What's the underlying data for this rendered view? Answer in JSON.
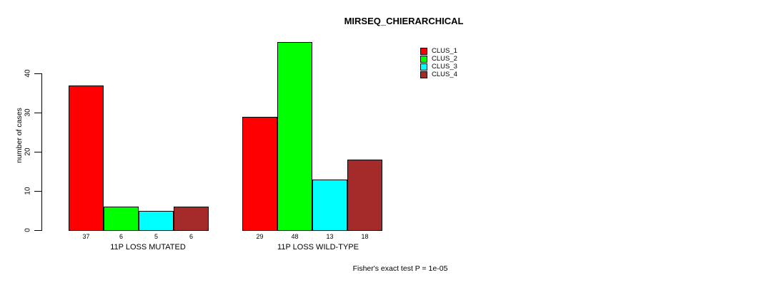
{
  "chart_data": {
    "type": "bar",
    "title": "MIRSEQ_CHIERARCHICAL",
    "ylabel": "number of cases",
    "xlabel": "",
    "ylim": [
      0,
      40
    ],
    "yticks": [
      0,
      10,
      20,
      30,
      40
    ],
    "categories": [
      "11P LOSS MUTATED",
      "11P LOSS WILD-TYPE"
    ],
    "series": [
      {
        "name": "CLUS_1",
        "color": "#FF0000",
        "values": [
          37,
          29
        ]
      },
      {
        "name": "CLUS_2",
        "color": "#00FF00",
        "values": [
          6,
          48
        ]
      },
      {
        "name": "CLUS_3",
        "color": "#00FFFF",
        "values": [
          5,
          13
        ]
      },
      {
        "name": "CLUS_4",
        "color": "#A52A2A",
        "values": [
          6,
          18
        ]
      }
    ],
    "bar_value_labels_shown": true,
    "annotation": "Fisher's exact test P = 1e-05",
    "legend_position": "top-right",
    "grid": false
  }
}
